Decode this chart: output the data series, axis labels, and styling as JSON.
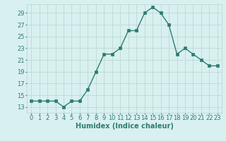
{
  "x": [
    0,
    1,
    2,
    3,
    4,
    5,
    6,
    7,
    8,
    9,
    10,
    11,
    12,
    13,
    14,
    15,
    16,
    17,
    18,
    19,
    20,
    21,
    22,
    23
  ],
  "y": [
    14,
    14,
    14,
    14,
    13,
    14,
    14,
    16,
    19,
    22,
    22,
    23,
    26,
    26,
    29,
    30,
    29,
    27,
    22,
    23,
    22,
    21,
    20,
    20
  ],
  "line_color": "#2e7d6e",
  "marker": "s",
  "marker_size": 2.2,
  "bg_color": "#d8f0f0",
  "grid_color": "#b8d4d0",
  "xlabel": "Humidex (Indice chaleur)",
  "xlabel_fontsize": 7,
  "ylabel_ticks": [
    13,
    15,
    17,
    19,
    21,
    23,
    25,
    27,
    29
  ],
  "ylim": [
    12.0,
    30.5
  ],
  "xlim": [
    -0.5,
    23.5
  ],
  "tick_fontsize": 6,
  "title_color": "#2e7d6e",
  "line_width": 1.0
}
